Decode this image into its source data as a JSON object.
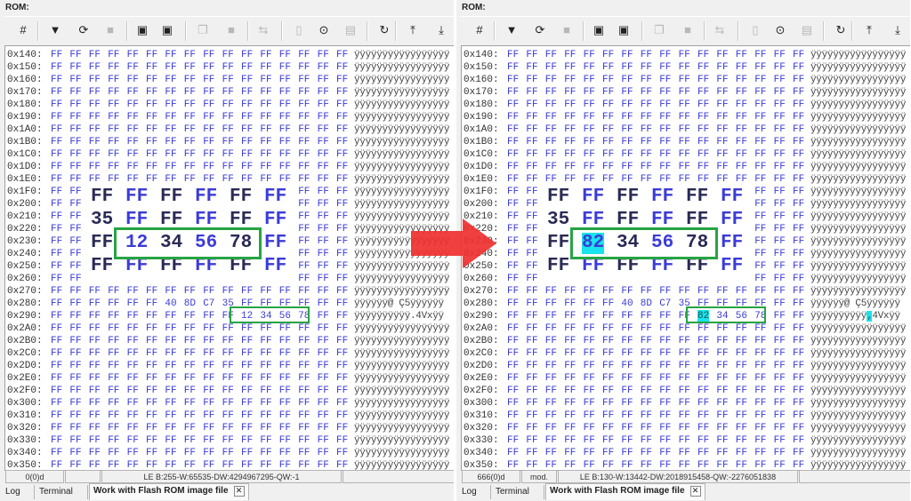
{
  "colors": {
    "accent_box": "#27a443",
    "highlight": "#19e3ec",
    "arrow": "#f03030",
    "hex_text": "#3a3ad6"
  },
  "toolbar_icons": [
    "chip-hash-icon",
    "chip-read-icon",
    "chip-verify-icon",
    "stop-icon",
    "save-file-icon",
    "save-as-file-icon",
    "copy-icon",
    "paste-icon",
    "compare-icon",
    "new-file-icon",
    "open-file-icon",
    "checksum-icon",
    "reload-file-icon",
    "goto-top-icon",
    "goto-bottom-icon"
  ],
  "panels": [
    {
      "title": "ROM:",
      "rows": [
        {
          "addr": "0x140:",
          "bytes": "FF FF FF FF FF FF FF FF FF FF FF FF FF FF FF FF",
          "ascii": "ÿÿÿÿÿÿÿÿÿÿÿÿÿÿÿÿÿ"
        },
        {
          "addr": "0x150:",
          "bytes": "FF FF FF FF FF FF FF FF FF FF FF FF FF FF FF FF",
          "ascii": "ÿÿÿÿÿÿÿÿÿÿÿÿÿÿÿÿÿ"
        },
        {
          "addr": "0x160:",
          "bytes": "FF FF FF FF FF FF FF FF FF FF FF FF FF FF FF FF",
          "ascii": "ÿÿÿÿÿÿÿÿÿÿÿÿÿÿÿÿÿ"
        },
        {
          "addr": "0x170:",
          "bytes": "FF FF FF FF FF FF FF FF FF FF FF FF FF FF FF FF",
          "ascii": "ÿÿÿÿÿÿÿÿÿÿÿÿÿÿÿÿÿ"
        },
        {
          "addr": "0x180:",
          "bytes": "FF FF FF FF FF FF FF FF FF FF FF FF FF FF FF FF",
          "ascii": "ÿÿÿÿÿÿÿÿÿÿÿÿÿÿÿÿÿ"
        },
        {
          "addr": "0x190:",
          "bytes": "FF FF FF FF FF FF FF FF FF FF FF FF FF FF FF FF",
          "ascii": "ÿÿÿÿÿÿÿÿÿÿÿÿÿÿÿÿÿ"
        },
        {
          "addr": "0x1A0:",
          "bytes": "FF FF FF FF FF FF FF FF FF FF FF FF FF FF FF FF",
          "ascii": "ÿÿÿÿÿÿÿÿÿÿÿÿÿÿÿÿÿ"
        },
        {
          "addr": "0x1B0:",
          "bytes": "FF FF FF FF FF FF FF FF FF FF FF FF FF FF FF FF",
          "ascii": "ÿÿÿÿÿÿÿÿÿÿÿÿÿÿÿÿÿ"
        },
        {
          "addr": "0x1C0:",
          "bytes": "FF FF FF FF FF FF FF FF FF FF FF FF FF FF FF FF",
          "ascii": "ÿÿÿÿÿÿÿÿÿÿÿÿÿÿÿÿÿ"
        },
        {
          "addr": "0x1D0:",
          "bytes": "FF FF FF FF FF FF FF FF FF FF FF FF FF FF FF FF",
          "ascii": "ÿÿÿÿÿÿÿÿÿÿÿÿÿÿÿÿÿ"
        },
        {
          "addr": "0x1E0:",
          "bytes": "FF FF FF FF FF FF FF FF FF FF FF FF FF FF FF FF",
          "ascii": "ÿÿÿÿÿÿÿÿÿÿÿÿÿÿÿÿÿ"
        },
        {
          "addr": "0x1F0:",
          "bytes": "FF FF FF FF FF FF FF FF FF FF FF FF FF FF FF FF",
          "ascii": "ÿÿÿÿÿÿÿÿÿÿÿÿÿÿÿÿÿ"
        },
        {
          "addr": "0x200:",
          "bytes": "FF FF FF FF FF FF FF FF FF FF FF FF FF FF FF FF",
          "ascii": "ÿÿÿÿÿÿÿÿÿÿÿÿÿÿÿÿÿ"
        },
        {
          "addr": "0x210:",
          "bytes": "FF FF FF FF FF FF FF FF FF FF FF FF FF FF FF FF",
          "ascii": "ÿÿÿÿÿÿÿÿÿÿÿÿÿÿÿÿÿ"
        },
        {
          "addr": "0x220:",
          "bytes": "FF FF FF FF FF FF FF FF FF FF FF FF FF FF FF FF",
          "ascii": "ÿÿÿÿÿÿÿÿÿÿÿÿÿÿÿÿÿ"
        },
        {
          "addr": "0x230:",
          "bytes": "FF FF FF FF FF FF FF FF FF FF FF FF FF FF FF FF",
          "ascii": "ÿÿÿÿÿÿÿÿÿÿÿÿÿÿÿÿÿ"
        },
        {
          "addr": "0x240:",
          "bytes": "FF FF FF FF FF FF FF FF FF FF FF FF FF FF FF FF",
          "ascii": "ÿÿÿÿÿÿÿÿÿÿÿÿÿÿÿÿÿ"
        },
        {
          "addr": "0x250:",
          "bytes": "FF FF FF FF FF FF FF FF FF FF FF FF FF FF FF FF",
          "ascii": "ÿÿÿÿÿÿÿÿÿÿÿÿÿÿÿÿÿ"
        },
        {
          "addr": "0x260:",
          "bytes": "FF FF FF FF FF FF FF FF FF FF FF FF FF FF FF FF",
          "ascii": "ÿÿÿÿÿÿÿÿÿÿÿÿÿÿÿÿÿ"
        },
        {
          "addr": "0x270:",
          "bytes": "FF FF FF FF FF FF FF FF FF FF FF FF FF FF FF FF",
          "ascii": "ÿÿÿÿÿÿÿÿÿÿÿÿÿÿÿÿÿ"
        },
        {
          "addr": "0x280:",
          "bytes": "FF FF FF FF FF FF 40 8D C7 35 FF FF FF FF FF FF",
          "ascii": "ÿÿÿÿÿÿ@ Ç5ÿÿÿÿÿÿ"
        },
        {
          "addr": "0x290:",
          "bytes": "FF FF FF FF FF FF FF FF FF FF 12 34 56 78 FF FF",
          "ascii": "ÿÿÿÿÿÿÿÿÿÿ.4Vxÿÿ"
        },
        {
          "addr": "0x2A0:",
          "bytes": "FF FF FF FF FF FF FF FF FF FF FF FF FF FF FF FF",
          "ascii": "ÿÿÿÿÿÿÿÿÿÿÿÿÿÿÿÿÿ"
        },
        {
          "addr": "0x2B0:",
          "bytes": "FF FF FF FF FF FF FF FF FF FF FF FF FF FF FF FF",
          "ascii": "ÿÿÿÿÿÿÿÿÿÿÿÿÿÿÿÿÿ"
        },
        {
          "addr": "0x2C0:",
          "bytes": "FF FF FF FF FF FF FF FF FF FF FF FF FF FF FF FF",
          "ascii": "ÿÿÿÿÿÿÿÿÿÿÿÿÿÿÿÿÿ"
        },
        {
          "addr": "0x2D0:",
          "bytes": "FF FF FF FF FF FF FF FF FF FF FF FF FF FF FF FF",
          "ascii": "ÿÿÿÿÿÿÿÿÿÿÿÿÿÿÿÿÿ"
        },
        {
          "addr": "0x2E0:",
          "bytes": "FF FF FF FF FF FF FF FF FF FF FF FF FF FF FF FF",
          "ascii": "ÿÿÿÿÿÿÿÿÿÿÿÿÿÿÿÿÿ"
        },
        {
          "addr": "0x2F0:",
          "bytes": "FF FF FF FF FF FF FF FF FF FF FF FF FF FF FF FF",
          "ascii": "ÿÿÿÿÿÿÿÿÿÿÿÿÿÿÿÿÿ"
        },
        {
          "addr": "0x300:",
          "bytes": "FF FF FF FF FF FF FF FF FF FF FF FF FF FF FF FF",
          "ascii": "ÿÿÿÿÿÿÿÿÿÿÿÿÿÿÿÿÿ"
        },
        {
          "addr": "0x310:",
          "bytes": "FF FF FF FF FF FF FF FF FF FF FF FF FF FF FF FF",
          "ascii": "ÿÿÿÿÿÿÿÿÿÿÿÿÿÿÿÿÿ"
        },
        {
          "addr": "0x320:",
          "bytes": "FF FF FF FF FF FF FF FF FF FF FF FF FF FF FF FF",
          "ascii": "ÿÿÿÿÿÿÿÿÿÿÿÿÿÿÿÿÿ"
        },
        {
          "addr": "0x330:",
          "bytes": "FF FF FF FF FF FF FF FF FF FF FF FF FF FF FF FF",
          "ascii": "ÿÿÿÿÿÿÿÿÿÿÿÿÿÿÿÿÿ"
        },
        {
          "addr": "0x340:",
          "bytes": "FF FF FF FF FF FF FF FF FF FF FF FF FF FF FF FF",
          "ascii": "ÿÿÿÿÿÿÿÿÿÿÿÿÿÿÿÿÿ"
        },
        {
          "addr": "0x350:",
          "bytes": "FF FF FF FF FF FF FF FF FF FF FF FF FF FF FF FF",
          "ascii": "ÿÿÿÿÿÿÿÿÿÿÿÿÿÿÿÿÿ"
        }
      ],
      "magnifier": [
        [
          "FF",
          "FF",
          "FF",
          "FF",
          "FF",
          "FF"
        ],
        [
          "35",
          "FF",
          "FF",
          "FF",
          "FF",
          "FF"
        ],
        [
          "FF",
          "12",
          "34",
          "56",
          "78",
          "FF"
        ],
        [
          "FF",
          "FF",
          "FF",
          "FF",
          "FF",
          "FF"
        ]
      ],
      "highlight_cell": null,
      "status": {
        "position": "0(0)d",
        "modified": "",
        "value": "LE B:255-W:65535-DW:4294967295-QW:-1"
      },
      "tabs": [
        "Log",
        "Terminal",
        "Work with Flash ROM image file"
      ]
    },
    {
      "title": "ROM:",
      "rows": [
        {
          "addr": "0x140:",
          "bytes": "FF FF FF FF FF FF FF FF FF FF FF FF FF FF FF FF",
          "ascii": "ÿÿÿÿÿÿÿÿÿÿÿÿÿÿÿÿÿ"
        },
        {
          "addr": "0x150:",
          "bytes": "FF FF FF FF FF FF FF FF FF FF FF FF FF FF FF FF",
          "ascii": "ÿÿÿÿÿÿÿÿÿÿÿÿÿÿÿÿÿ"
        },
        {
          "addr": "0x160:",
          "bytes": "FF FF FF FF FF FF FF FF FF FF FF FF FF FF FF FF",
          "ascii": "ÿÿÿÿÿÿÿÿÿÿÿÿÿÿÿÿÿ"
        },
        {
          "addr": "0x170:",
          "bytes": "FF FF FF FF FF FF FF FF FF FF FF FF FF FF FF FF",
          "ascii": "ÿÿÿÿÿÿÿÿÿÿÿÿÿÿÿÿÿ"
        },
        {
          "addr": "0x180:",
          "bytes": "FF FF FF FF FF FF FF FF FF FF FF FF FF FF FF FF",
          "ascii": "ÿÿÿÿÿÿÿÿÿÿÿÿÿÿÿÿÿ"
        },
        {
          "addr": "0x190:",
          "bytes": "FF FF FF FF FF FF FF FF FF FF FF FF FF FF FF FF",
          "ascii": "ÿÿÿÿÿÿÿÿÿÿÿÿÿÿÿÿÿ"
        },
        {
          "addr": "0x1A0:",
          "bytes": "FF FF FF FF FF FF FF FF FF FF FF FF FF FF FF FF",
          "ascii": "ÿÿÿÿÿÿÿÿÿÿÿÿÿÿÿÿÿ"
        },
        {
          "addr": "0x1B0:",
          "bytes": "FF FF FF FF FF FF FF FF FF FF FF FF FF FF FF FF",
          "ascii": "ÿÿÿÿÿÿÿÿÿÿÿÿÿÿÿÿÿ"
        },
        {
          "addr": "0x1C0:",
          "bytes": "FF FF FF FF FF FF FF FF FF FF FF FF FF FF FF FF",
          "ascii": "ÿÿÿÿÿÿÿÿÿÿÿÿÿÿÿÿÿ"
        },
        {
          "addr": "0x1D0:",
          "bytes": "FF FF FF FF FF FF FF FF FF FF FF FF FF FF FF FF",
          "ascii": "ÿÿÿÿÿÿÿÿÿÿÿÿÿÿÿÿÿ"
        },
        {
          "addr": "0x1E0:",
          "bytes": "FF FF FF FF FF FF FF FF FF FF FF FF FF FF FF FF",
          "ascii": "ÿÿÿÿÿÿÿÿÿÿÿÿÿÿÿÿÿ"
        },
        {
          "addr": "0x1F0:",
          "bytes": "FF FF FF FF FF FF FF FF FF FF FF FF FF FF FF FF",
          "ascii": "ÿÿÿÿÿÿÿÿÿÿÿÿÿÿÿÿÿ"
        },
        {
          "addr": "0x200:",
          "bytes": "FF FF FF FF FF FF FF FF FF FF FF FF FF FF FF FF",
          "ascii": "ÿÿÿÿÿÿÿÿÿÿÿÿÿÿÿÿÿ"
        },
        {
          "addr": "0x210:",
          "bytes": "FF FF FF FF FF FF FF FF FF FF FF FF FF FF FF FF",
          "ascii": "ÿÿÿÿÿÿÿÿÿÿÿÿÿÿÿÿÿ"
        },
        {
          "addr": "0x220:",
          "bytes": "FF FF FF FF FF FF FF FF FF FF FF FF FF FF FF FF",
          "ascii": "ÿÿÿÿÿÿÿÿÿÿÿÿÿÿÿÿÿ"
        },
        {
          "addr": "0x230:",
          "bytes": "FF FF FF FF FF FF FF FF FF FF FF FF FF FF FF FF",
          "ascii": "ÿÿÿÿÿÿÿÿÿÿÿÿÿÿÿÿÿ"
        },
        {
          "addr": "0x240:",
          "bytes": "FF FF FF FF FF FF FF FF FF FF FF FF FF FF FF FF",
          "ascii": "ÿÿÿÿÿÿÿÿÿÿÿÿÿÿÿÿÿ"
        },
        {
          "addr": "0x250:",
          "bytes": "FF FF FF FF FF FF FF FF FF FF FF FF FF FF FF FF",
          "ascii": "ÿÿÿÿÿÿÿÿÿÿÿÿÿÿÿÿÿ"
        },
        {
          "addr": "0x260:",
          "bytes": "FF FF FF FF FF FF FF FF FF FF FF FF FF FF FF FF",
          "ascii": "ÿÿÿÿÿÿÿÿÿÿÿÿÿÿÿÿÿ"
        },
        {
          "addr": "0x270:",
          "bytes": "FF FF FF FF FF FF FF FF FF FF FF FF FF FF FF FF",
          "ascii": "ÿÿÿÿÿÿÿÿÿÿÿÿÿÿÿÿÿ"
        },
        {
          "addr": "0x280:",
          "bytes": "FF FF FF FF FF FF 40 8D C7 35 FF FF FF FF FF FF",
          "ascii": "ÿÿÿÿÿÿ@ Ç5ÿÿÿÿÿÿ"
        },
        {
          "addr": "0x290:",
          "bytes": "FF FF FF FF FF FF FF FF FF FF 82 34 56 78 FF FF",
          "ascii": "ÿÿÿÿÿÿÿÿÿÿ‚4Vxÿÿ"
        },
        {
          "addr": "0x2A0:",
          "bytes": "FF FF FF FF FF FF FF FF FF FF FF FF FF FF FF FF",
          "ascii": "ÿÿÿÿÿÿÿÿÿÿÿÿÿÿÿÿÿ"
        },
        {
          "addr": "0x2B0:",
          "bytes": "FF FF FF FF FF FF FF FF FF FF FF FF FF FF FF FF",
          "ascii": "ÿÿÿÿÿÿÿÿÿÿÿÿÿÿÿÿÿ"
        },
        {
          "addr": "0x2C0:",
          "bytes": "FF FF FF FF FF FF FF FF FF FF FF FF FF FF FF FF",
          "ascii": "ÿÿÿÿÿÿÿÿÿÿÿÿÿÿÿÿÿ"
        },
        {
          "addr": "0x2D0:",
          "bytes": "FF FF FF FF FF FF FF FF FF FF FF FF FF FF FF FF",
          "ascii": "ÿÿÿÿÿÿÿÿÿÿÿÿÿÿÿÿÿ"
        },
        {
          "addr": "0x2E0:",
          "bytes": "FF FF FF FF FF FF FF FF FF FF FF FF FF FF FF FF",
          "ascii": "ÿÿÿÿÿÿÿÿÿÿÿÿÿÿÿÿÿ"
        },
        {
          "addr": "0x2F0:",
          "bytes": "FF FF FF FF FF FF FF FF FF FF FF FF FF FF FF FF",
          "ascii": "ÿÿÿÿÿÿÿÿÿÿÿÿÿÿÿÿÿ"
        },
        {
          "addr": "0x300:",
          "bytes": "FF FF FF FF FF FF FF FF FF FF FF FF FF FF FF FF",
          "ascii": "ÿÿÿÿÿÿÿÿÿÿÿÿÿÿÿÿÿ"
        },
        {
          "addr": "0x310:",
          "bytes": "FF FF FF FF FF FF FF FF FF FF FF FF FF FF FF FF",
          "ascii": "ÿÿÿÿÿÿÿÿÿÿÿÿÿÿÿÿÿ"
        },
        {
          "addr": "0x320:",
          "bytes": "FF FF FF FF FF FF FF FF FF FF FF FF FF FF FF FF",
          "ascii": "ÿÿÿÿÿÿÿÿÿÿÿÿÿÿÿÿÿ"
        },
        {
          "addr": "0x330:",
          "bytes": "FF FF FF FF FF FF FF FF FF FF FF FF FF FF FF FF",
          "ascii": "ÿÿÿÿÿÿÿÿÿÿÿÿÿÿÿÿÿ"
        },
        {
          "addr": "0x340:",
          "bytes": "FF FF FF FF FF FF FF FF FF FF FF FF FF FF FF FF",
          "ascii": "ÿÿÿÿÿÿÿÿÿÿÿÿÿÿÿÿÿ"
        },
        {
          "addr": "0x350:",
          "bytes": "FF FF FF FF FF FF FF FF FF FF FF FF FF FF FF FF",
          "ascii": "ÿÿÿÿÿÿÿÿÿÿÿÿÿÿÿÿÿ"
        }
      ],
      "magnifier": [
        [
          "FF",
          "FF",
          "FF",
          "FF",
          "FF",
          "FF"
        ],
        [
          "35",
          "FF",
          "FF",
          "FF",
          "FF",
          "FF"
        ],
        [
          "FF",
          "82",
          "34",
          "56",
          "78",
          "FF"
        ],
        [
          "FF",
          "FF",
          "FF",
          "FF",
          "FF",
          "FF"
        ]
      ],
      "highlight_cell": "0x29A",
      "status": {
        "position": "666(0)d",
        "modified": "mod.",
        "value": "LE B:130-W:13442-DW:2018915458-QW:-2276051838"
      },
      "tabs": [
        "Log",
        "Terminal",
        "Work with Flash ROM image file"
      ]
    }
  ]
}
